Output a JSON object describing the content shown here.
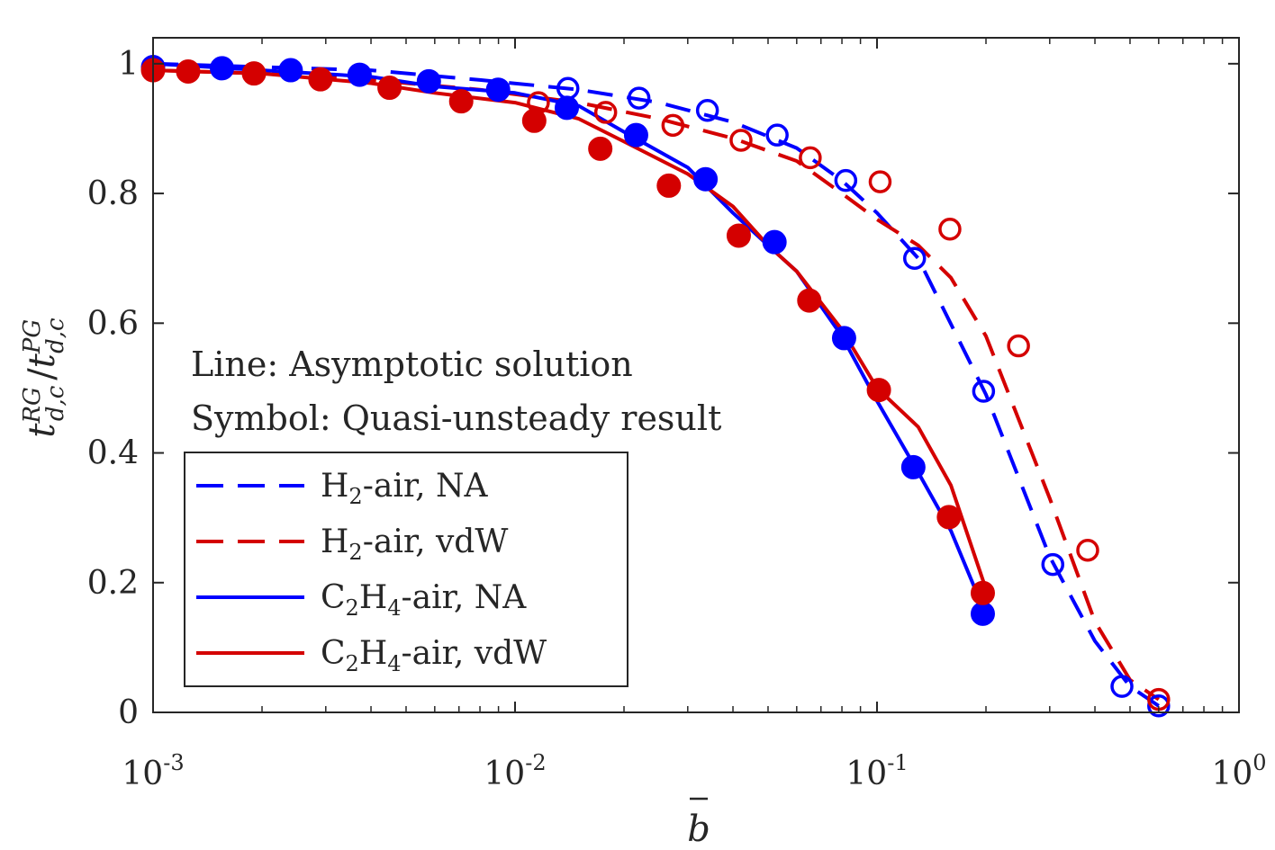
{
  "chart_data": {
    "type": "line",
    "xscale": "log",
    "xlim": [
      0.001,
      1
    ],
    "ylim": [
      0,
      1.04
    ],
    "xticks": [
      {
        "value": 0.001,
        "base": "10",
        "exp": "-3"
      },
      {
        "value": 0.01,
        "base": "10",
        "exp": "-2"
      },
      {
        "value": 0.1,
        "base": "10",
        "exp": "-1"
      },
      {
        "value": 1,
        "base": "10",
        "exp": "0"
      }
    ],
    "yticks": [
      {
        "value": 0,
        "label": "0"
      },
      {
        "value": 0.2,
        "label": "0.2"
      },
      {
        "value": 0.4,
        "label": "0.4"
      },
      {
        "value": 0.6,
        "label": "0.6"
      },
      {
        "value": 0.8,
        "label": "0.8"
      },
      {
        "value": 1,
        "label": "1"
      }
    ],
    "xlabel": "b",
    "ylabel": {
      "t": "t",
      "sup": "RG",
      "sub": "d,c",
      "sep": "/"
    },
    "annotations": [
      "Line: Asymptotic solution",
      "Symbol: Quasi-unsteady result"
    ],
    "legend_position": "lower-left",
    "legend": [
      {
        "species": "H",
        "sub": "2",
        "rest": "-air, NA",
        "style": "dashed",
        "color": "#0000ff"
      },
      {
        "species": "H",
        "sub": "2",
        "rest": "-air, vdW",
        "style": "dashed",
        "color": "#d40000"
      },
      {
        "species": "C",
        "sub": "2",
        "species2": "H",
        "sub2": "4",
        "rest": "-air, NA",
        "style": "solid",
        "color": "#0000ff"
      },
      {
        "species": "C",
        "sub": "2",
        "species2": "H",
        "sub2": "4",
        "rest": "-air, vdW",
        "style": "solid",
        "color": "#d40000"
      }
    ],
    "lines": [
      {
        "style": "dashed",
        "color": "#0000ff",
        "x": [
          0.001,
          0.002,
          0.004,
          0.008,
          0.015,
          0.025,
          0.04,
          0.06,
          0.08,
          0.1,
          0.13,
          0.2,
          0.3,
          0.4,
          0.5,
          0.6
        ],
        "y": [
          1.0,
          0.995,
          0.99,
          0.975,
          0.96,
          0.94,
          0.91,
          0.87,
          0.82,
          0.77,
          0.7,
          0.49,
          0.24,
          0.11,
          0.04,
          0.01
        ]
      },
      {
        "style": "dashed",
        "color": "#d40000",
        "x": [
          0.001,
          0.002,
          0.004,
          0.008,
          0.015,
          0.025,
          0.04,
          0.06,
          0.08,
          0.1,
          0.13,
          0.16,
          0.2,
          0.3,
          0.4,
          0.5,
          0.6
        ],
        "y": [
          0.99,
          0.985,
          0.975,
          0.96,
          0.94,
          0.915,
          0.885,
          0.85,
          0.8,
          0.76,
          0.72,
          0.67,
          0.58,
          0.33,
          0.14,
          0.05,
          0.02
        ]
      },
      {
        "style": "solid",
        "color": "#0000ff",
        "x": [
          0.001,
          0.002,
          0.004,
          0.006,
          0.01,
          0.015,
          0.02,
          0.03,
          0.04,
          0.05,
          0.06,
          0.08,
          0.1,
          0.13,
          0.16,
          0.2
        ],
        "y": [
          1.0,
          0.99,
          0.98,
          0.965,
          0.955,
          0.935,
          0.895,
          0.84,
          0.77,
          0.72,
          0.68,
          0.58,
          0.48,
          0.37,
          0.28,
          0.15
        ]
      },
      {
        "style": "solid",
        "color": "#d40000",
        "x": [
          0.001,
          0.002,
          0.004,
          0.006,
          0.01,
          0.015,
          0.02,
          0.03,
          0.04,
          0.05,
          0.06,
          0.08,
          0.1,
          0.13,
          0.16,
          0.2
        ],
        "y": [
          0.99,
          0.985,
          0.97,
          0.955,
          0.94,
          0.915,
          0.88,
          0.83,
          0.78,
          0.72,
          0.68,
          0.59,
          0.5,
          0.44,
          0.35,
          0.19
        ]
      }
    ],
    "markers": [
      {
        "fill": "open",
        "color": "#0000ff",
        "x": [
          0.014,
          0.022,
          0.034,
          0.053,
          0.082,
          0.127,
          0.197,
          0.306,
          0.475,
          0.6
        ],
        "y": [
          0.962,
          0.947,
          0.928,
          0.89,
          0.82,
          0.7,
          0.495,
          0.228,
          0.04,
          0.01
        ]
      },
      {
        "fill": "open",
        "color": "#d40000",
        "x": [
          0.0116,
          0.0178,
          0.0273,
          0.0421,
          0.0654,
          0.102,
          0.159,
          0.246,
          0.382,
          0.6
        ],
        "y": [
          0.94,
          0.925,
          0.905,
          0.882,
          0.855,
          0.818,
          0.745,
          0.565,
          0.25,
          0.02
        ]
      },
      {
        "fill": "filled",
        "color": "#0000ff",
        "x": [
          0.001,
          0.00155,
          0.0024,
          0.00372,
          0.00578,
          0.00898,
          0.0139,
          0.0216,
          0.0336,
          0.0521,
          0.0811,
          0.126,
          0.196
        ],
        "y": [
          0.995,
          0.993,
          0.99,
          0.983,
          0.973,
          0.96,
          0.932,
          0.89,
          0.822,
          0.725,
          0.577,
          0.378,
          0.152
        ]
      },
      {
        "fill": "filled",
        "color": "#d40000",
        "x": [
          0.001,
          0.00125,
          0.0019,
          0.0029,
          0.0045,
          0.0071,
          0.0113,
          0.0172,
          0.0266,
          0.0415,
          0.065,
          0.1012,
          0.158,
          0.196
        ],
        "y": [
          0.99,
          0.988,
          0.985,
          0.976,
          0.963,
          0.942,
          0.912,
          0.869,
          0.812,
          0.735,
          0.635,
          0.497,
          0.301,
          0.184
        ]
      }
    ]
  }
}
